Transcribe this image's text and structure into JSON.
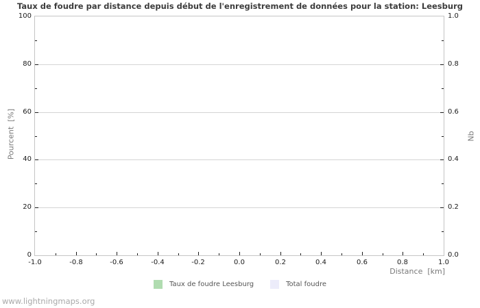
{
  "title": "Taux de foudre par distance depuis début de l'enregistrement de données pour la station: Leesburg",
  "watermark": "www.lightningmaps.org",
  "axes": {
    "x_label": "Distance  [km]",
    "y_left_label": "Pourcent  [%]",
    "y_right_label": "Nb"
  },
  "chart_data": {
    "type": "bar",
    "title": "Taux de foudre par distance depuis début de l'enregistrement de données pour la station: Leesburg",
    "xlabel": "Distance [km]",
    "ylabel_left": "Pourcent [%]",
    "ylabel_right": "Nb",
    "xlim": [
      -1.0,
      1.0
    ],
    "ylim_left": [
      0,
      100
    ],
    "ylim_right": [
      0.0,
      1.0
    ],
    "x_tick_labels": [
      "-1.0",
      "-0.8",
      "-0.6",
      "-0.4",
      "-0.2",
      "0.0",
      "0.2",
      "0.4",
      "0.6",
      "0.8",
      "1.0"
    ],
    "y_left_tick_labels": [
      "0",
      "20",
      "40",
      "60",
      "80",
      "100"
    ],
    "y_right_tick_labels": [
      "0.0",
      "0.2",
      "0.4",
      "0.6",
      "0.8",
      "1.0"
    ],
    "minor_ticks_per_interval": 1,
    "grid": "horizontal",
    "legend_position": "bottom-center",
    "series": [
      {
        "name": "Taux de foudre Leesburg",
        "color": "#b0dcb0",
        "values": []
      },
      {
        "name": "Total foudre",
        "color": "#ececfa",
        "values": []
      }
    ],
    "colors": {
      "grid": "#d4d4d4",
      "plot_border": "#c4c4c4",
      "tick_mark": "#1a1a1a",
      "tick_label": "#1a1a1a",
      "axis_title": "#787878",
      "chart_title": "#3c3c3c",
      "legend_text": "#555555",
      "watermark": "#a9a9a9",
      "background": "#ffffff"
    }
  }
}
